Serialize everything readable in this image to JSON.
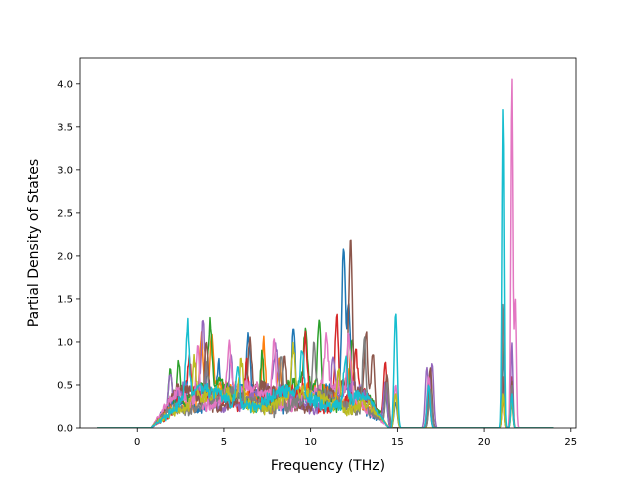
{
  "chart_data": {
    "type": "line",
    "title": "",
    "xlabel": "Frequency (THz)",
    "ylabel": "Partial Density of States",
    "xlim": [
      -3.3,
      25.3
    ],
    "ylim": [
      0,
      4.3
    ],
    "xticks": [
      0,
      5,
      10,
      15,
      20,
      25
    ],
    "xtick_labels": [
      "0",
      "5",
      "10",
      "15",
      "20",
      "25"
    ],
    "yticks": [
      0.0,
      0.5,
      1.0,
      1.5,
      2.0,
      2.5,
      3.0,
      3.5,
      4.0
    ],
    "ytick_labels": [
      "0.0",
      "0.5",
      "1.0",
      "1.5",
      "2.0",
      "2.5",
      "3.0",
      "3.5",
      "4.0"
    ],
    "grid": false,
    "legend": "none",
    "x_start": -2.3,
    "x_end": 24.0,
    "series": [
      {
        "color": "#1f77b4",
        "band": [
          0.34,
          0.1
        ],
        "peaks": [
          [
            3.0,
            0.55
          ],
          [
            4.7,
            0.45
          ],
          [
            6.4,
            0.62
          ],
          [
            9.0,
            0.89
          ],
          [
            11.9,
            1.76
          ],
          [
            12.2,
            1.1
          ],
          [
            14.3,
            0.4
          ],
          [
            14.9,
            0.3
          ],
          [
            16.9,
            0.62
          ],
          [
            21.1,
            0.9
          ],
          [
            21.6,
            0.5
          ]
        ]
      },
      {
        "color": "#ff7f0e",
        "band": [
          0.36,
          0.12
        ],
        "peaks": [
          [
            3.7,
            0.76
          ],
          [
            4.3,
            0.65
          ],
          [
            7.3,
            0.78
          ],
          [
            8.2,
            0.55
          ],
          [
            12.3,
            0.6
          ],
          [
            14.9,
            0.4
          ],
          [
            16.8,
            0.55
          ],
          [
            21.1,
            0.35
          ],
          [
            21.6,
            0.3
          ]
        ]
      },
      {
        "color": "#2ca02c",
        "band": [
          0.38,
          0.14
        ],
        "peaks": [
          [
            1.9,
            0.54
          ],
          [
            2.4,
            0.5
          ],
          [
            4.2,
            0.72
          ],
          [
            7.2,
            0.6
          ],
          [
            9.7,
            0.7
          ],
          [
            10.5,
            0.9
          ],
          [
            12.4,
            0.75
          ],
          [
            14.3,
            0.45
          ],
          [
            16.9,
            0.5
          ],
          [
            21.1,
            1.2
          ],
          [
            21.6,
            0.4
          ]
        ]
      },
      {
        "color": "#d62728",
        "band": [
          0.33,
          0.1
        ],
        "peaks": [
          [
            3.0,
            0.45
          ],
          [
            6.3,
            0.52
          ],
          [
            9.7,
            0.72
          ],
          [
            11.5,
            1.08
          ],
          [
            12.6,
            0.5
          ],
          [
            14.3,
            0.72
          ],
          [
            16.8,
            0.45
          ],
          [
            21.1,
            0.4
          ],
          [
            21.6,
            0.6
          ]
        ]
      },
      {
        "color": "#9467bd",
        "band": [
          0.35,
          0.12
        ],
        "peaks": [
          [
            1.9,
            0.4
          ],
          [
            3.8,
            0.82
          ],
          [
            5.4,
            0.6
          ],
          [
            8.0,
            0.48
          ],
          [
            11.3,
            0.5
          ],
          [
            14.3,
            0.5
          ],
          [
            16.7,
            0.7
          ],
          [
            17.0,
            0.75
          ],
          [
            21.1,
            0.5
          ],
          [
            21.6,
            1.0
          ]
        ]
      },
      {
        "color": "#8c564b",
        "band": [
          0.36,
          0.12
        ],
        "peaks": [
          [
            4.0,
            0.75
          ],
          [
            6.5,
            0.58
          ],
          [
            8.5,
            0.5
          ],
          [
            12.3,
            1.75
          ],
          [
            13.2,
            0.85
          ],
          [
            13.6,
            0.7
          ],
          [
            14.4,
            0.6
          ],
          [
            16.9,
            0.7
          ],
          [
            21.1,
            0.6
          ],
          [
            21.6,
            0.55
          ]
        ]
      },
      {
        "color": "#e377c2",
        "band": [
          0.38,
          0.12
        ],
        "peaks": [
          [
            3.5,
            0.62
          ],
          [
            5.3,
            0.58
          ],
          [
            7.9,
            0.66
          ],
          [
            10.9,
            0.6
          ],
          [
            12.2,
            0.7
          ],
          [
            14.9,
            0.5
          ],
          [
            16.8,
            0.6
          ],
          [
            21.1,
            1.4
          ],
          [
            21.6,
            4.09
          ],
          [
            21.8,
            1.5
          ]
        ]
      },
      {
        "color": "#7f7f7f",
        "band": [
          0.3,
          0.1
        ],
        "peaks": [
          [
            4.0,
            0.45
          ],
          [
            8.3,
            0.62
          ],
          [
            10.2,
            0.55
          ],
          [
            13.1,
            0.82
          ],
          [
            14.4,
            0.5
          ],
          [
            16.9,
            0.45
          ],
          [
            21.1,
            1.45
          ],
          [
            21.6,
            0.5
          ]
        ]
      },
      {
        "color": "#bcbd22",
        "band": [
          0.32,
          0.1
        ],
        "peaks": [
          [
            3.3,
            0.5
          ],
          [
            6.0,
            0.48
          ],
          [
            9.0,
            0.55
          ],
          [
            11.6,
            0.45
          ],
          [
            14.9,
            0.4
          ],
          [
            21.1,
            0.4
          ],
          [
            21.6,
            0.35
          ]
        ]
      },
      {
        "color": "#17becf",
        "band": [
          0.34,
          0.1
        ],
        "peaks": [
          [
            2.9,
            0.85
          ],
          [
            5.8,
            0.5
          ],
          [
            9.5,
            0.5
          ],
          [
            12.0,
            0.55
          ],
          [
            14.9,
            1.34
          ],
          [
            16.8,
            0.5
          ],
          [
            21.1,
            3.74
          ],
          [
            21.6,
            0.4
          ]
        ]
      }
    ]
  }
}
